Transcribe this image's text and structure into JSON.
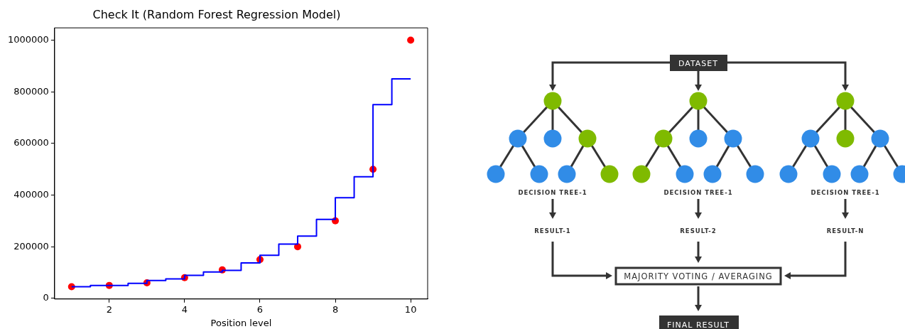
{
  "chart_data": {
    "type": "scatter",
    "title": "Check It (Random Forest Regression Model)",
    "xlabel": "Position level",
    "xlim": [
      0.55,
      10.45
    ],
    "xticks": [
      2,
      4,
      6,
      8,
      10
    ],
    "ylim": [
      -2750,
      1047750
    ],
    "yticks": [
      0,
      200000,
      400000,
      600000,
      800000,
      1000000
    ],
    "grid": false,
    "legend": false,
    "series": [
      {
        "type": "scatter",
        "color": "#ff0000",
        "marker": "circle",
        "x": [
          1,
          2,
          3,
          4,
          5,
          6,
          7,
          8,
          9,
          10
        ],
        "values": [
          45000,
          50000,
          60000,
          80000,
          110000,
          150000,
          200000,
          300000,
          500000,
          1000000
        ]
      },
      {
        "type": "step",
        "color": "#0000ff",
        "marker": "none",
        "x": [
          1,
          1.5,
          2.5,
          3,
          3.5,
          4,
          4.5,
          5,
          5.5,
          6,
          6.5,
          7,
          7.5,
          8,
          8.5,
          9,
          9.5,
          10
        ],
        "values": [
          45000,
          50000,
          58000,
          69000,
          75000,
          89000,
          102000,
          108000,
          137000,
          167000,
          210000,
          241000,
          306000,
          390000,
          471000,
          750000,
          850000,
          850000
        ]
      }
    ],
    "annotations": [
      "DATASET",
      "DECISION TREE-1",
      "DECISION TREE-1",
      "DECISION TREE-1",
      "RESULT-1",
      "RESULT-2",
      "RESULT-N",
      "MAJORITY VOTING / AVERAGING",
      "FINAL RESULT"
    ]
  }
}
